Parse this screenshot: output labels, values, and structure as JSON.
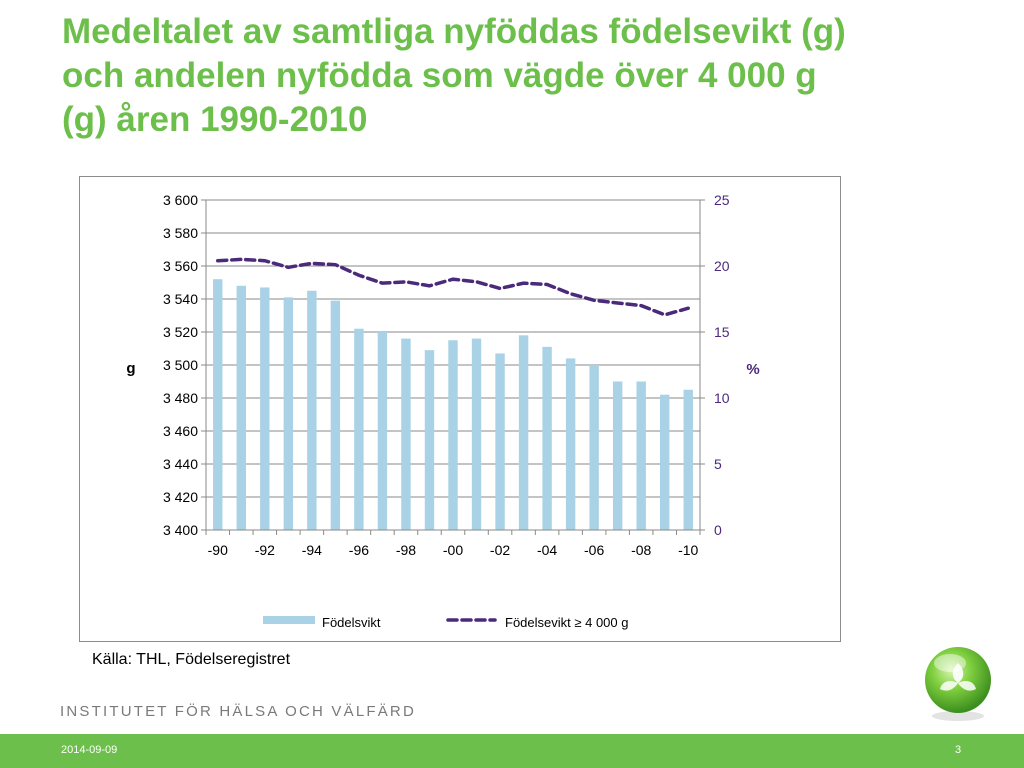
{
  "slide": {
    "title": "Medeltalet av samtliga nyföddas födelsevikt (g)\noch andelen nyfödda som vägde över 4 000 g\n(g) åren 1990-2010",
    "source": "Källa: THL, Födelseregistret",
    "organization": "INSTITUTET FÖR HÄLSA OCH VÄLFÄRD",
    "date": "2014-09-09",
    "page_number": "3"
  },
  "colors": {
    "title": "#6dbf4b",
    "bar": "#a9d2e6",
    "line": "#4b2a7b",
    "footer": "#6dbf4b"
  },
  "chart_data": {
    "type": "bar",
    "x": [
      "-90",
      "-91",
      "-92",
      "-93",
      "-94",
      "-95",
      "-96",
      "-97",
      "-98",
      "-99",
      "-00",
      "-01",
      "-02",
      "-03",
      "-04",
      "-05",
      "-06",
      "-07",
      "-08",
      "-09",
      "-10"
    ],
    "x_tick_labels": [
      "-90",
      "-92",
      "-94",
      "-96",
      "-98",
      "-00",
      "-02",
      "-04",
      "-06",
      "-08",
      "-10"
    ],
    "ylabel": "g",
    "ylabel_right": "%",
    "ylim": [
      3400,
      3600
    ],
    "ylim_right": [
      0,
      25
    ],
    "y_ticks": [
      "3 400",
      "3 420",
      "3 440",
      "3 460",
      "3 480",
      "3 500",
      "3 520",
      "3 540",
      "3 560",
      "3 580",
      "3 600"
    ],
    "y_ticks_right": [
      "0",
      "5",
      "10",
      "15",
      "20",
      "25"
    ],
    "legend_position": "bottom",
    "grid": true,
    "series": [
      {
        "name": "Födelsvikt",
        "kind": "bar",
        "axis": "left",
        "values": [
          3552,
          3548,
          3547,
          3541,
          3545,
          3539,
          3522,
          3520,
          3516,
          3509,
          3515,
          3516,
          3507,
          3518,
          3511,
          3504,
          3500,
          3490,
          3490,
          3482,
          3485
        ]
      },
      {
        "name": "Födelsevikt ≥ 4 000 g",
        "kind": "dashed-line",
        "axis": "right",
        "values": [
          20.4,
          20.5,
          20.4,
          19.9,
          20.2,
          20.1,
          19.3,
          18.7,
          18.8,
          18.5,
          19.0,
          18.8,
          18.3,
          18.7,
          18.6,
          17.9,
          17.4,
          17.2,
          17.0,
          16.3,
          16.8
        ]
      }
    ]
  }
}
